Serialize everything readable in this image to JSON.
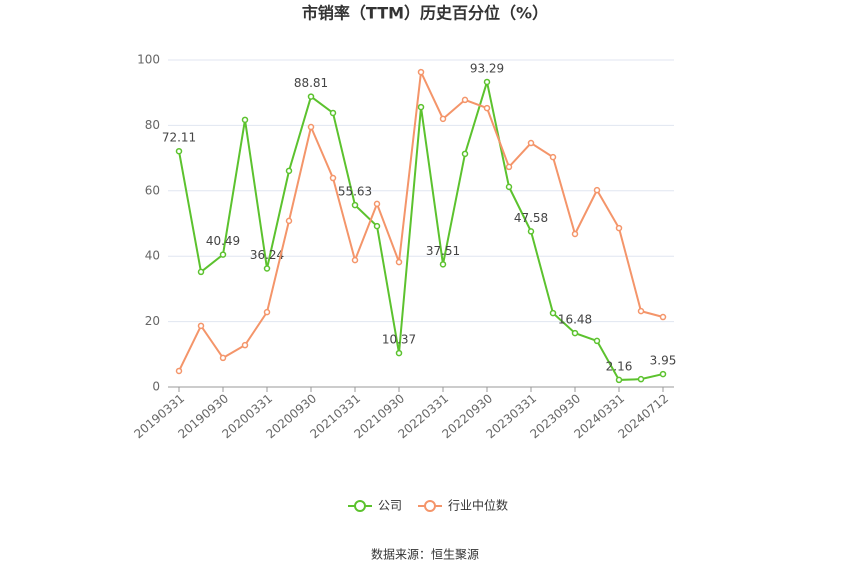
{
  "chart_data": {
    "type": "line",
    "title": "市销率（TTM）历史百分位（%）",
    "source": "数据来源：恒生聚源",
    "categories": [
      "20190331",
      null,
      "20190930",
      null,
      "20200331",
      null,
      "20200930",
      null,
      "20210331",
      null,
      "20210930",
      null,
      "20220331",
      null,
      "20220930",
      null,
      "20230331",
      null,
      "20230930",
      null,
      "20240331",
      null,
      "20240712"
    ],
    "series": [
      {
        "name": "公司",
        "color": "#5cc22e",
        "values": [
          72.11,
          35.2,
          40.49,
          81.7,
          36.24,
          66.1,
          88.81,
          83.8,
          55.63,
          49.2,
          10.37,
          85.6,
          37.51,
          71.3,
          93.29,
          61.2,
          47.58,
          22.6,
          16.48,
          14.1,
          2.16,
          2.4,
          3.95
        ],
        "value_labels": [
          "72.11",
          null,
          "40.49",
          null,
          "36.24",
          null,
          "88.81",
          null,
          "55.63",
          null,
          "10.37",
          null,
          "37.51",
          null,
          "93.29",
          null,
          "47.58",
          null,
          "16.48",
          null,
          "2.16",
          null,
          "3.95"
        ]
      },
      {
        "name": "行业中位数",
        "color": "#f4956a",
        "values": [
          4.9,
          18.7,
          8.9,
          12.8,
          22.9,
          50.8,
          79.5,
          63.9,
          38.8,
          56.0,
          38.2,
          96.3,
          82.0,
          87.8,
          85.3,
          67.3,
          74.6,
          70.3,
          46.8,
          60.2,
          48.6,
          23.2,
          21.4
        ]
      }
    ],
    "ylim": [
      0,
      100
    ],
    "yticks": [
      0,
      20,
      40,
      60,
      80,
      100
    ],
    "grid": true
  }
}
